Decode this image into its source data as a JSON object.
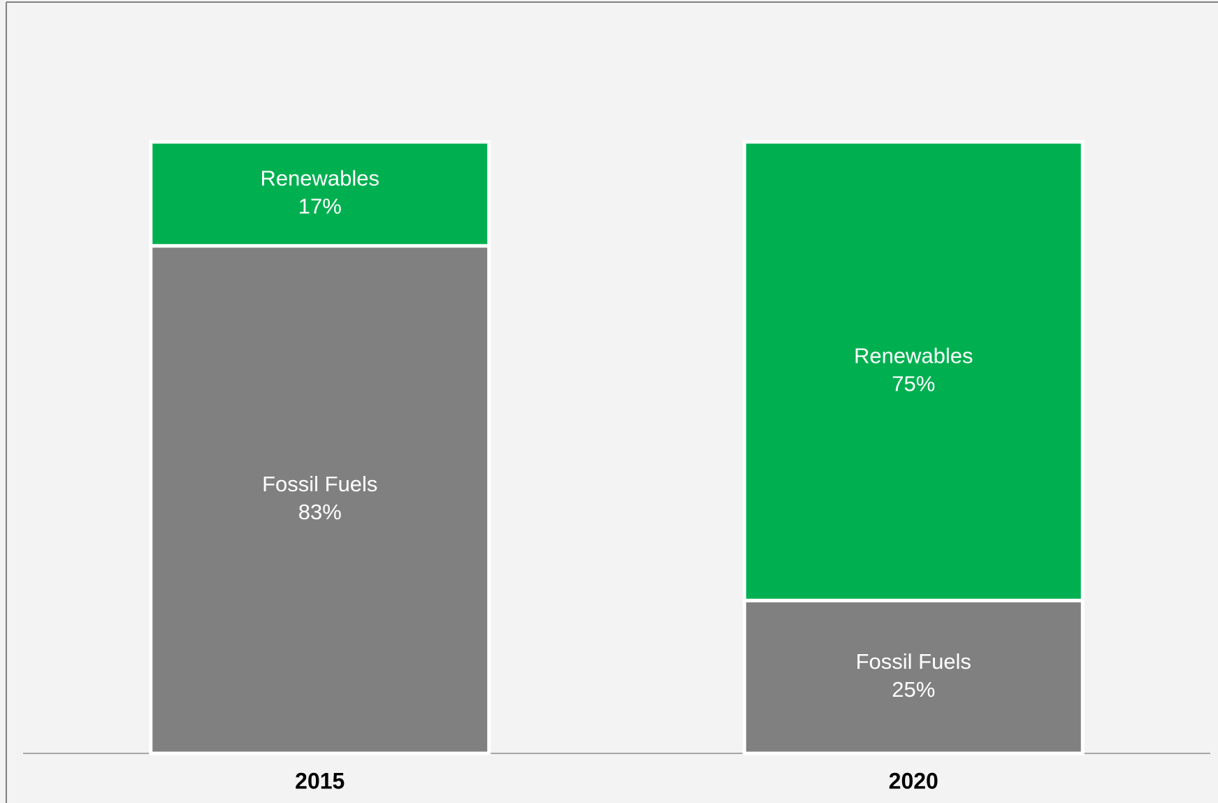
{
  "chart_data": {
    "type": "stacked_bar",
    "categories": [
      "2015",
      "2020"
    ],
    "series": [
      {
        "name": "Fossil Fuels",
        "color": "#808080",
        "values": [
          83,
          25
        ],
        "value_labels": [
          "83%",
          "25%"
        ]
      },
      {
        "name": "Renewables",
        "color": "#00b050",
        "values": [
          17,
          75
        ],
        "value_labels": [
          "17%",
          "75%"
        ]
      }
    ],
    "ylim": [
      0,
      100
    ]
  }
}
